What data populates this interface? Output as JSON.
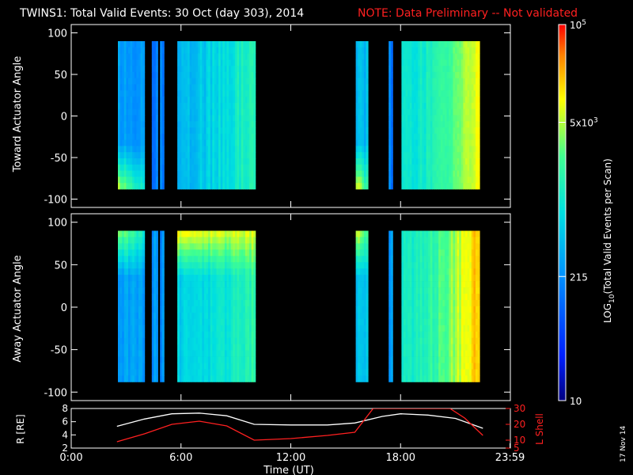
{
  "title": {
    "main": "TWINS1: Total Valid Events: 30 Oct (day 303), 2014",
    "note": "NOTE: Data Preliminary -- Not validated",
    "note_color": "#ff2020"
  },
  "chart_data": [
    {
      "type": "heatmap",
      "panel": "toward",
      "ylabel": "Toward Actuator Angle",
      "ylim": [
        -110,
        110
      ],
      "yticks": [
        "100",
        "50",
        "0",
        "-50",
        "-100"
      ],
      "ytick_values": [
        100,
        50,
        0,
        -50,
        -100
      ],
      "xlim_hours": [
        0,
        24
      ],
      "data_angle_range": [
        -88,
        90
      ],
      "segments": [
        {
          "start_h": 2.55,
          "end_h": 4.0,
          "base": 0.36,
          "edge": "bottom-bright"
        },
        {
          "start_h": 4.4,
          "end_h": 4.7,
          "base": 0.3
        },
        {
          "start_h": 4.85,
          "end_h": 5.0,
          "base": 0.3
        },
        {
          "start_h": 5.8,
          "end_h": 10.0,
          "base": 0.42,
          "ramp": 0.18
        },
        {
          "start_h": 15.55,
          "end_h": 16.2,
          "base": 0.42,
          "edge": "bottom-bright"
        },
        {
          "start_h": 17.35,
          "end_h": 17.5,
          "base": 0.3
        },
        {
          "start_h": 18.05,
          "end_h": 22.3,
          "base": 0.5,
          "ramp": 0.3
        }
      ]
    },
    {
      "type": "heatmap",
      "panel": "away",
      "ylabel": "Away Actuator Angle",
      "ylim": [
        -110,
        110
      ],
      "yticks": [
        "100",
        "50",
        "0",
        "-50",
        "-100"
      ],
      "ytick_values": [
        100,
        50,
        0,
        -50,
        -100
      ],
      "xlim_hours": [
        0,
        24
      ],
      "data_angle_range": [
        -88,
        90
      ],
      "segments": [
        {
          "start_h": 2.55,
          "end_h": 4.0,
          "base": 0.36,
          "edge": "top-bright"
        },
        {
          "start_h": 4.4,
          "end_h": 4.7,
          "base": 0.34
        },
        {
          "start_h": 4.85,
          "end_h": 5.0,
          "base": 0.34
        },
        {
          "start_h": 5.8,
          "end_h": 10.0,
          "base": 0.46,
          "ramp": 0.15,
          "edge": "top-bright"
        },
        {
          "start_h": 15.55,
          "end_h": 16.2,
          "base": 0.45,
          "edge": "top-bright"
        },
        {
          "start_h": 17.35,
          "end_h": 17.5,
          "base": 0.34
        },
        {
          "start_h": 18.05,
          "end_h": 22.3,
          "base": 0.55,
          "ramp": 0.32
        }
      ]
    },
    {
      "type": "line",
      "panel": "orbit",
      "ylabel": "R [RE]",
      "ylim": [
        2,
        8
      ],
      "yticks": [
        "8",
        "6",
        "4",
        "2"
      ],
      "ytick_values": [
        8,
        6,
        4,
        2
      ],
      "y2label": "L Shell",
      "y2lim": [
        5,
        30
      ],
      "y2ticks": [
        "30",
        "20",
        "10",
        "5"
      ],
      "y2tick_values": [
        30,
        20,
        10,
        5
      ],
      "xlim_hours": [
        0,
        24
      ],
      "xticks": [
        "0:00",
        "6:00",
        "12:00",
        "18:00",
        "23:59"
      ],
      "xtick_values": [
        0,
        6,
        12,
        18,
        23.98
      ],
      "xlabel": "Time (UT)",
      "series": [
        {
          "name": "R",
          "color": "#ffffff",
          "axis": "left",
          "x": [
            2.5,
            4.0,
            5.5,
            7.0,
            8.5,
            10.0,
            12.0,
            14.0,
            15.5,
            17.0,
            18.0,
            19.5,
            21.0,
            22.5
          ],
          "y": [
            5.3,
            6.4,
            7.2,
            7.3,
            6.9,
            5.6,
            5.5,
            5.5,
            5.8,
            6.8,
            7.2,
            7.0,
            6.5,
            5.0
          ]
        },
        {
          "name": "L Shell",
          "color": "#ff2020",
          "axis": "right",
          "x": [
            2.5,
            4.0,
            5.5,
            7.0,
            8.5,
            10.0,
            12.0,
            14.0,
            15.5,
            16.5,
            20.7,
            21.5,
            22.5
          ],
          "y": [
            9,
            14,
            20,
            22,
            19,
            10,
            11,
            13,
            15,
            30,
            30,
            24,
            13
          ]
        }
      ]
    }
  ],
  "colorbar": {
    "label": "LOG10(Total Valid Events per Scan)",
    "label_main": "LOG",
    "label_sub": "10",
    "label_rest": "(Total Valid Events per Scan)",
    "ticks": [
      {
        "text": "10^5",
        "base": "10",
        "exp": "5",
        "frac": 1.0
      },
      {
        "text": "5x10^3",
        "base": "5x10",
        "exp": "3",
        "frac": 0.74
      },
      {
        "text": "215",
        "frac": 0.33
      },
      {
        "text": "10",
        "frac": 0.0
      }
    ]
  },
  "footer": {
    "date_stamp": "17 Nov 14"
  }
}
